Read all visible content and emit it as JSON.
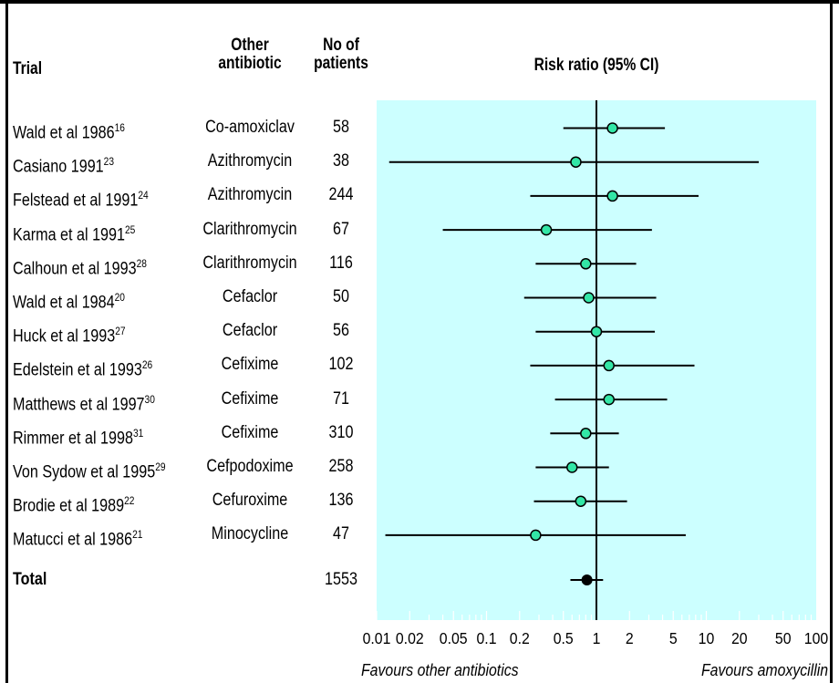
{
  "header": {
    "trial": "Trial",
    "other_line1": "Other",
    "other_line2": "antibiotic",
    "patients_line1": "No of",
    "patients_line2": "patients",
    "risk": "Risk ratio (95% CI)"
  },
  "rows": [
    {
      "trial": "Wald et al 1986",
      "ref": "16",
      "antibiotic": "Co-amoxiclav",
      "patients": "58"
    },
    {
      "trial": "Casiano 1991",
      "ref": "23",
      "antibiotic": "Azithromycin",
      "patients": "38"
    },
    {
      "trial": "Felstead et al 1991",
      "ref": "24",
      "antibiotic": "Azithromycin",
      "patients": "244"
    },
    {
      "trial": "Karma et al 1991",
      "ref": "25",
      "antibiotic": "Clarithromycin",
      "patients": "67"
    },
    {
      "trial": "Calhoun et al 1993",
      "ref": "28",
      "antibiotic": "Clarithromycin",
      "patients": "116"
    },
    {
      "trial": "Wald et al 1984",
      "ref": "20",
      "antibiotic": "Cefaclor",
      "patients": "50"
    },
    {
      "trial": "Huck et al 1993",
      "ref": "27",
      "antibiotic": "Cefaclor",
      "patients": "56"
    },
    {
      "trial": "Edelstein et al 1993",
      "ref": "26",
      "antibiotic": "Cefixime",
      "patients": "102"
    },
    {
      "trial": "Matthews et al 1997",
      "ref": "30",
      "antibiotic": "Cefixime",
      "patients": "71"
    },
    {
      "trial": "Rimmer et al 1998",
      "ref": "31",
      "antibiotic": "Cefixime",
      "patients": "310"
    },
    {
      "trial": "Von Sydow et al 1995",
      "ref": "29",
      "antibiotic": "Cefpodoxime",
      "patients": "258"
    },
    {
      "trial": "Brodie et al 1989",
      "ref": "22",
      "antibiotic": "Cefuroxime",
      "patients": "136"
    },
    {
      "trial": "Matucci et al 1986",
      "ref": "21",
      "antibiotic": "Minocycline",
      "patients": "47"
    }
  ],
  "total": {
    "label": "Total",
    "patients": "1553"
  },
  "favours_left": "Favours other antibiotics",
  "favours_right": "Favours amoxycillin",
  "colors": {
    "panel": "#ccffff",
    "marker": "#33e6a6",
    "total_marker": "#000000"
  },
  "chart_data": {
    "type": "forest",
    "x_scale": "log",
    "xlim": [
      0.01,
      100
    ],
    "x_ticks": [
      0.01,
      0.02,
      0.05,
      0.1,
      0.2,
      0.5,
      1,
      2,
      5,
      10,
      20,
      50,
      100
    ],
    "x_tick_labels": [
      "0.01",
      "0.02",
      "0.05",
      "0.1",
      "0.2",
      "0.5",
      "1",
      "2",
      "5",
      "10",
      "20",
      "50",
      "100"
    ],
    "reference_line": 1,
    "xlabel": "Risk ratio (95% CI)",
    "studies": [
      {
        "name": "Wald et al 1986",
        "rr": 1.4,
        "ci": [
          0.5,
          4.2
        ]
      },
      {
        "name": "Casiano 1991",
        "rr": 0.65,
        "ci": [
          0.013,
          30
        ]
      },
      {
        "name": "Felstead et al 1991",
        "rr": 1.4,
        "ci": [
          0.25,
          8.5
        ]
      },
      {
        "name": "Karma et al 1991",
        "rr": 0.35,
        "ci": [
          0.04,
          3.2
        ]
      },
      {
        "name": "Calhoun et al 1993",
        "rr": 0.8,
        "ci": [
          0.28,
          2.3
        ]
      },
      {
        "name": "Wald et al 1984",
        "rr": 0.85,
        "ci": [
          0.22,
          3.5
        ]
      },
      {
        "name": "Huck et al 1993",
        "rr": 1.0,
        "ci": [
          0.28,
          3.4
        ]
      },
      {
        "name": "Edelstein et al 1993",
        "rr": 1.3,
        "ci": [
          0.25,
          7.8
        ]
      },
      {
        "name": "Matthews et al 1997",
        "rr": 1.3,
        "ci": [
          0.42,
          4.4
        ]
      },
      {
        "name": "Rimmer et al 1998",
        "rr": 0.8,
        "ci": [
          0.38,
          1.6
        ]
      },
      {
        "name": "Von Sydow et al 1995",
        "rr": 0.6,
        "ci": [
          0.28,
          1.3
        ]
      },
      {
        "name": "Brodie et al 1989",
        "rr": 0.72,
        "ci": [
          0.27,
          1.9
        ]
      },
      {
        "name": "Matucci et al 1986",
        "rr": 0.28,
        "ci": [
          0.012,
          6.5
        ]
      }
    ],
    "total": {
      "rr": 0.82,
      "ci": [
        0.58,
        1.15
      ]
    }
  }
}
